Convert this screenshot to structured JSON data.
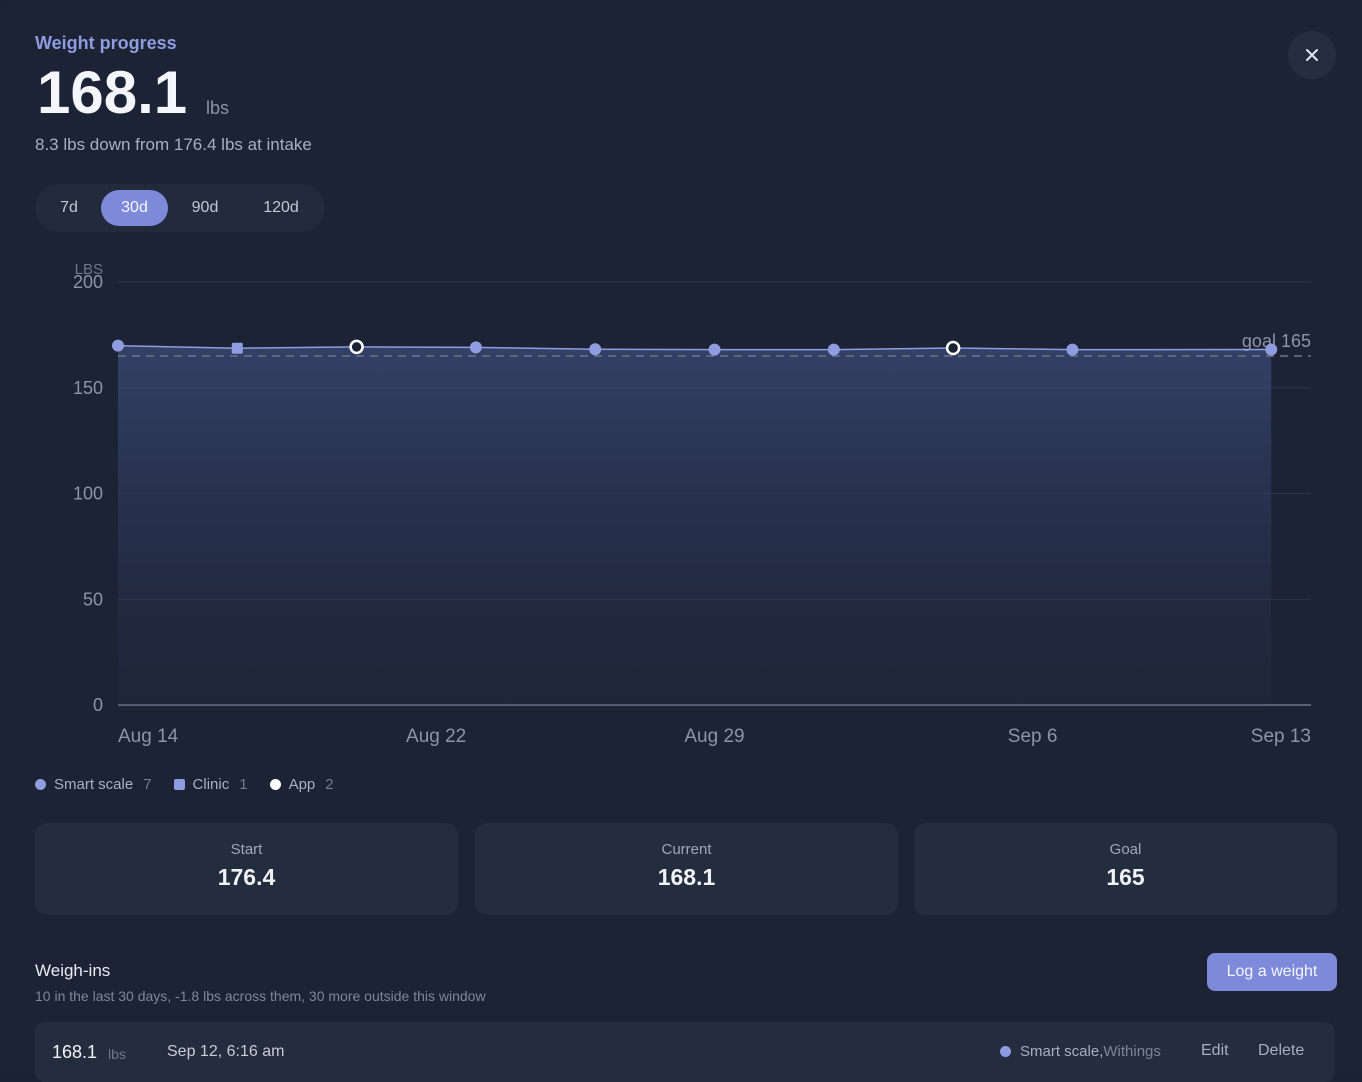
{
  "header": {
    "title": "Weight progress",
    "current_weight": "168.1",
    "unit": "lbs",
    "summary": "8.3 lbs down from 176.4 lbs at intake",
    "close_icon": "close-icon"
  },
  "range_options": [
    {
      "label": "7d",
      "active": false
    },
    {
      "label": "30d",
      "active": true
    },
    {
      "label": "90d",
      "active": false
    },
    {
      "label": "120d",
      "active": false
    }
  ],
  "chart_data": {
    "type": "area",
    "y_unit_label": "LBS",
    "y_ticks": [
      0,
      50,
      100,
      150,
      200
    ],
    "ylim": [
      0,
      200
    ],
    "x_tick_labels": [
      "Aug 14",
      "Aug 22",
      "Aug 29",
      "Sep 6",
      "Sep 13"
    ],
    "goal": {
      "value": 165,
      "label": "goal 165"
    },
    "series": [
      {
        "points": [
          {
            "x": "Aug 14",
            "y": 169.9,
            "source": "Smart scale"
          },
          {
            "x": "Aug 17",
            "y": 168.7,
            "source": "Clinic"
          },
          {
            "x": "Aug 20",
            "y": 169.3,
            "source": "App"
          },
          {
            "x": "Aug 23",
            "y": 169.1,
            "source": "Smart scale"
          },
          {
            "x": "Aug 26",
            "y": 168.2,
            "source": "Smart scale"
          },
          {
            "x": "Aug 29",
            "y": 168.0,
            "source": "Smart scale"
          },
          {
            "x": "Sep 1",
            "y": 168.0,
            "source": "Smart scale"
          },
          {
            "x": "Sep 4",
            "y": 168.8,
            "source": "App"
          },
          {
            "x": "Sep 7",
            "y": 168.0,
            "source": "Smart scale"
          },
          {
            "x": "Sep 12",
            "y": 168.1,
            "source": "Smart scale"
          }
        ]
      }
    ],
    "colors": {
      "line": "#8f9cdf",
      "goal": "#6d7487"
    }
  },
  "legend": [
    {
      "label": "Smart scale",
      "count": "7",
      "shape": "dot"
    },
    {
      "label": "Clinic",
      "count": "1",
      "shape": "square"
    },
    {
      "label": "App",
      "count": "2",
      "shape": "white-dot"
    }
  ],
  "stats": [
    {
      "label": "Start",
      "value": "176.4"
    },
    {
      "label": "Current",
      "value": "168.1"
    },
    {
      "label": "Goal",
      "value": "165"
    }
  ],
  "weighins": {
    "title": "Weigh-ins",
    "subtitle": "10 in the last 30 days, -1.8 lbs across them, 30 more outside this window",
    "log_button": "Log a weight",
    "rows": [
      {
        "weight": "168.1",
        "unit": "lbs",
        "date": "Sep 12, 6:16 am",
        "source": "Smart scale",
        "device": "Withings",
        "edit": "Edit",
        "delete": "Delete"
      }
    ]
  },
  "accent": "#7d89d9"
}
